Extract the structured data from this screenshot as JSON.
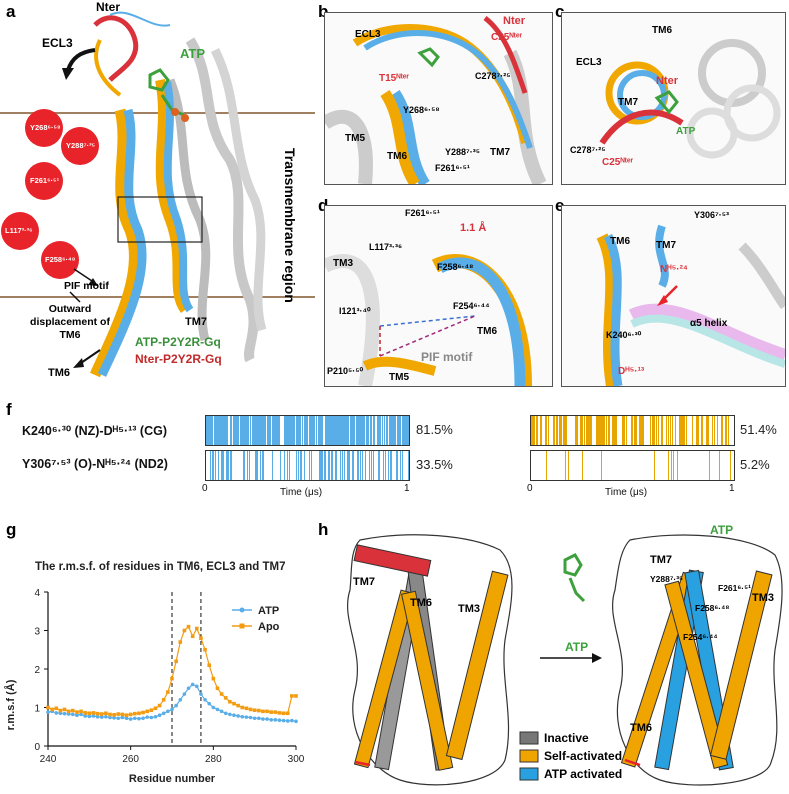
{
  "panels": {
    "a": {
      "letter": "a",
      "nter": "Nter",
      "ecl3": "ECL3",
      "atp": "ATP",
      "region": "Transmembrane region",
      "pif": "PIF motif",
      "outward": "Outward displacement of TM6",
      "tm7": "TM7",
      "tm6": "TM6",
      "circles": [
        "Y268⁶·⁵⁸",
        "Y288⁷·³⁵",
        "F261⁶·⁵¹",
        "L117³·³⁶",
        "F258⁶·⁴⁸"
      ],
      "legend1": "ATP-P2Y2R-Gq",
      "legend2": "Nter-P2Y2R-Gq"
    },
    "b": {
      "letter": "b",
      "labels": [
        "ECL3",
        "Nter",
        "C25ᴺᵗᵉʳ",
        "T15ᴺᵗᵉʳ",
        "C278⁷·²⁵",
        "Y268⁶·⁵⁸",
        "TM5",
        "TM6",
        "Y288⁷·³⁵",
        "TM7",
        "F261⁶·⁵¹"
      ]
    },
    "c": {
      "letter": "c",
      "labels": [
        "TM6",
        "ECL3",
        "Nter",
        "TM7",
        "ATP",
        "C278⁷·²⁵",
        "C25ᴺᵗᵉʳ"
      ]
    },
    "d": {
      "letter": "d",
      "labels": [
        "F261⁶·⁵¹",
        "1.1 Å",
        "L117³·³⁶",
        "TM3",
        "F258⁶·⁴⁸",
        "F254⁶·⁴⁴",
        "I121³·⁴⁰",
        "TM6",
        "PIF motif",
        "P210⁵·⁵⁰",
        "TM5"
      ]
    },
    "e": {
      "letter": "e",
      "labels": [
        "Y306⁷·⁵³",
        "TM6",
        "TM7",
        "Nᴴ⁵·²⁴",
        "α5 helix",
        "K240⁶·³⁰",
        "Dᴴ⁵·¹³"
      ]
    },
    "f": {
      "letter": "f",
      "time_label": "Time (μs)",
      "tick0": "0",
      "tick1": "1",
      "rows": [
        {
          "label": "K240⁶·³⁰ (NZ)-Dᴴ⁵·¹³ (CG)",
          "left_pct": "81.5%",
          "right_pct": "51.4%"
        },
        {
          "label": "Y306⁷·⁵³ (O)-Nᴴ⁵·²⁴ (ND2)",
          "left_pct": "33.5%",
          "right_pct": "5.2%"
        }
      ],
      "colors": {
        "atp": "#5aaee8",
        "apo": "#e8a400"
      }
    },
    "h": {
      "letter": "h",
      "labels": [
        "TM7",
        "TM6",
        "TM3",
        "ATP",
        "TM7",
        "Y288⁷·³⁵",
        "F261⁶·⁵¹",
        "F258⁶·⁴⁸",
        "F254⁶·⁴⁴",
        "TM3",
        "TM6"
      ],
      "legend": [
        "Inactive",
        "Self-activated",
        "ATP activated"
      ],
      "arrow_label": "ATP"
    }
  },
  "chart_data": {
    "type": "line",
    "title": "The r.m.s.f. of residues in TM6, ECL3 and TM7",
    "xlabel": "Residue number",
    "ylabel": "r.m.s.f (Å)",
    "xlim": [
      240,
      300
    ],
    "ylim": [
      0,
      4
    ],
    "xticks": [
      240,
      260,
      280,
      300
    ],
    "yticks": [
      0,
      1,
      2,
      3,
      4
    ],
    "vlines": [
      270,
      277
    ],
    "x": [
      240,
      241,
      242,
      243,
      244,
      245,
      246,
      247,
      248,
      249,
      250,
      251,
      252,
      253,
      254,
      255,
      256,
      257,
      258,
      259,
      260,
      261,
      262,
      263,
      264,
      265,
      266,
      267,
      268,
      269,
      270,
      271,
      272,
      273,
      274,
      275,
      276,
      277,
      278,
      279,
      280,
      281,
      282,
      283,
      284,
      285,
      286,
      287,
      288,
      289,
      290,
      291,
      292,
      293,
      294,
      295,
      296,
      297,
      298,
      299,
      300
    ],
    "series": [
      {
        "name": "ATP",
        "color": "#5aaee8",
        "values": [
          0.88,
          0.9,
          0.86,
          0.85,
          0.84,
          0.83,
          0.82,
          0.8,
          0.82,
          0.78,
          0.77,
          0.78,
          0.76,
          0.75,
          0.76,
          0.74,
          0.73,
          0.72,
          0.74,
          0.72,
          0.7,
          0.72,
          0.71,
          0.72,
          0.75,
          0.74,
          0.76,
          0.8,
          0.85,
          0.9,
          0.95,
          1.05,
          1.2,
          1.35,
          1.5,
          1.6,
          1.55,
          1.35,
          1.2,
          1.1,
          1.0,
          0.95,
          0.9,
          0.85,
          0.82,
          0.8,
          0.78,
          0.76,
          0.75,
          0.74,
          0.72,
          0.72,
          0.7,
          0.7,
          0.68,
          0.68,
          0.67,
          0.66,
          0.65,
          0.66,
          0.64
        ]
      },
      {
        "name": "Apo",
        "color": "#f39c12",
        "values": [
          1.0,
          0.95,
          0.98,
          0.92,
          0.95,
          0.9,
          0.92,
          0.88,
          0.9,
          0.86,
          0.85,
          0.86,
          0.84,
          0.83,
          0.85,
          0.82,
          0.81,
          0.83,
          0.82,
          0.8,
          0.82,
          0.84,
          0.85,
          0.87,
          0.9,
          0.93,
          0.98,
          1.05,
          1.2,
          1.4,
          1.75,
          2.2,
          2.7,
          3.0,
          3.1,
          2.85,
          3.05,
          2.8,
          2.5,
          2.1,
          1.75,
          1.5,
          1.35,
          1.25,
          1.15,
          1.1,
          1.05,
          1.0,
          0.98,
          0.95,
          0.93,
          0.92,
          0.9,
          0.9,
          0.88,
          0.88,
          0.86,
          0.85,
          0.85,
          1.3,
          1.3
        ]
      }
    ]
  },
  "g_letter": "g"
}
